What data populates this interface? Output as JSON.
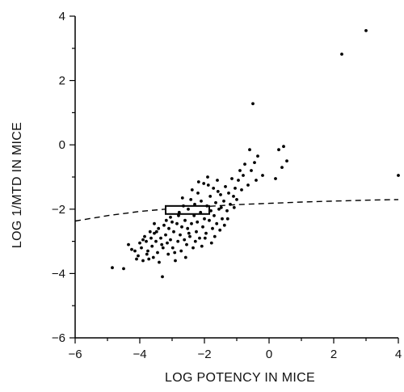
{
  "chart_data": {
    "type": "scatter",
    "xlabel": "LOG POTENCY IN MICE",
    "ylabel": "LOG 1/MTD IN MICE",
    "xlim": [
      -6,
      4
    ],
    "ylim": [
      -6,
      4
    ],
    "xticks": [
      -6,
      -4,
      -2,
      0,
      2,
      4
    ],
    "yticks": [
      -6,
      -4,
      -2,
      0,
      2,
      4
    ],
    "xtick_labels": [
      "−6",
      "−4",
      "−2",
      "0",
      "2",
      "4"
    ],
    "ytick_labels": [
      "−6",
      "−4",
      "−2",
      "0",
      "2",
      "4"
    ],
    "grid": false,
    "points": [
      [
        -4.85,
        -3.82
      ],
      [
        -4.5,
        -3.85
      ],
      [
        -4.35,
        -3.1
      ],
      [
        -4.25,
        -3.25
      ],
      [
        -4.15,
        -3.3
      ],
      [
        -4.05,
        -3.45
      ],
      [
        -4.0,
        -3.05
      ],
      [
        -3.95,
        -3.2
      ],
      [
        -3.9,
        -3.6
      ],
      [
        -3.85,
        -2.85
      ],
      [
        -3.8,
        -3.0
      ],
      [
        -3.75,
        -3.3
      ],
      [
        -3.72,
        -3.55
      ],
      [
        -3.65,
        -2.9
      ],
      [
        -3.62,
        -3.15
      ],
      [
        -3.58,
        -3.5
      ],
      [
        -3.55,
        -2.75
      ],
      [
        -3.5,
        -3.0
      ],
      [
        -3.45,
        -3.35
      ],
      [
        -3.42,
        -2.6
      ],
      [
        -3.4,
        -3.65
      ],
      [
        -3.35,
        -2.9
      ],
      [
        -3.3,
        -4.1
      ],
      [
        -3.28,
        -3.2
      ],
      [
        -3.25,
        -2.5
      ],
      [
        -3.2,
        -2.8
      ],
      [
        -3.15,
        -3.05
      ],
      [
        -3.12,
        -3.4
      ],
      [
        -3.1,
        -2.6
      ],
      [
        -3.05,
        -2.95
      ],
      [
        -3.0,
        -2.4
      ],
      [
        -2.98,
        -3.2
      ],
      [
        -2.95,
        -2.7
      ],
      [
        -2.9,
        -3.6
      ],
      [
        -2.85,
        -2.45
      ],
      [
        -2.82,
        -3.0
      ],
      [
        -2.8,
        -2.2
      ],
      [
        -2.75,
        -2.8
      ],
      [
        -2.72,
        -3.3
      ],
      [
        -2.7,
        -2.55
      ],
      [
        -2.65,
        -1.9
      ],
      [
        -2.62,
        -2.95
      ],
      [
        -2.6,
        -2.35
      ],
      [
        -2.55,
        -3.1
      ],
      [
        -2.52,
        -2.6
      ],
      [
        -2.5,
        -2.0
      ],
      [
        -2.45,
        -2.85
      ],
      [
        -2.42,
        -1.7
      ],
      [
        -2.4,
        -2.45
      ],
      [
        -2.35,
        -3.2
      ],
      [
        -2.32,
        -2.2
      ],
      [
        -2.3,
        -1.85
      ],
      [
        -2.25,
        -2.7
      ],
      [
        -2.22,
        -2.4
      ],
      [
        -2.2,
        -1.5
      ],
      [
        -2.15,
        -2.9
      ],
      [
        -2.12,
        -2.1
      ],
      [
        -2.1,
        -1.75
      ],
      [
        -2.05,
        -2.55
      ],
      [
        -2.02,
        -1.2
      ],
      [
        -2.0,
        -2.3
      ],
      [
        -1.95,
        -2.75
      ],
      [
        -1.92,
        -1.9
      ],
      [
        -1.9,
        -1.0
      ],
      [
        -1.85,
        -2.35
      ],
      [
        -1.82,
        -1.6
      ],
      [
        -1.8,
        -2.05
      ],
      [
        -1.75,
        -2.6
      ],
      [
        -1.72,
        -1.35
      ],
      [
        -1.7,
        -2.2
      ],
      [
        -1.65,
        -1.8
      ],
      [
        -1.62,
        -2.45
      ],
      [
        -1.6,
        -1.1
      ],
      [
        -1.55,
        -2.0
      ],
      [
        -1.5,
        -1.55
      ],
      [
        -1.45,
        -2.3
      ],
      [
        -1.4,
        -1.75
      ],
      [
        -1.35,
        -1.3
      ],
      [
        -1.3,
        -2.05
      ],
      [
        -1.25,
        -1.5
      ],
      [
        -1.2,
        -1.85
      ],
      [
        -1.15,
        -1.05
      ],
      [
        -1.1,
        -1.6
      ],
      [
        -1.05,
        -1.35
      ],
      [
        -1.0,
        -1.7
      ],
      [
        -0.95,
        -1.1
      ],
      [
        -0.9,
        -0.8
      ],
      [
        -0.85,
        -1.4
      ],
      [
        -0.8,
        -0.95
      ],
      [
        -0.75,
        -0.6
      ],
      [
        -0.65,
        -1.25
      ],
      [
        -0.6,
        -0.15
      ],
      [
        -0.55,
        -0.8
      ],
      [
        -0.45,
        -0.55
      ],
      [
        -0.4,
        -1.1
      ],
      [
        -0.35,
        -0.35
      ],
      [
        -0.2,
        -0.95
      ],
      [
        0.2,
        -1.05
      ],
      [
        0.3,
        -0.15
      ],
      [
        0.4,
        -0.7
      ],
      [
        0.45,
        -0.05
      ],
      [
        0.55,
        -0.5
      ],
      [
        -3.9,
        -2.95
      ],
      [
        -3.55,
        -2.45
      ],
      [
        -3.05,
        -2.25
      ],
      [
        -2.78,
        -2.1
      ],
      [
        -2.48,
        -2.75
      ],
      [
        -2.28,
        -3.0
      ],
      [
        -1.98,
        -2.9
      ],
      [
        -1.68,
        -2.85
      ],
      [
        -1.58,
        -1.45
      ],
      [
        -1.48,
        -1.95
      ],
      [
        -1.38,
        -2.5
      ],
      [
        -2.68,
        -1.65
      ],
      [
        -2.38,
        -1.4
      ],
      [
        -2.18,
        -1.15
      ],
      [
        -1.88,
        -1.25
      ],
      [
        -3.18,
        -2.35
      ],
      [
        -3.48,
        -2.7
      ],
      [
        -3.68,
        -2.7
      ],
      [
        -4.1,
        -3.55
      ],
      [
        -3.78,
        -3.4
      ],
      [
        -3.32,
        -3.1
      ],
      [
        -2.92,
        -3.35
      ],
      [
        -2.58,
        -3.5
      ],
      [
        -2.08,
        -3.15
      ],
      [
        -1.78,
        -3.05
      ],
      [
        -1.52,
        -2.65
      ],
      [
        -1.28,
        -2.3
      ],
      [
        -1.08,
        -1.95
      ],
      [
        2.25,
        2.82
      ],
      [
        3.0,
        3.55
      ],
      [
        -0.5,
        1.28
      ],
      [
        4.0,
        -0.95
      ]
    ],
    "dashed_curve": [
      [
        -6.0,
        -2.37
      ],
      [
        -5.0,
        -2.2
      ],
      [
        -4.0,
        -2.07
      ],
      [
        -3.0,
        -1.98
      ],
      [
        -2.0,
        -1.92
      ],
      [
        -1.0,
        -1.86
      ],
      [
        0.0,
        -1.82
      ],
      [
        1.0,
        -1.78
      ],
      [
        2.0,
        -1.75
      ],
      [
        3.0,
        -1.72
      ],
      [
        4.0,
        -1.7
      ]
    ],
    "box": {
      "x_range": [
        -3.2,
        -1.85
      ],
      "y_range": [
        -2.15,
        -1.9
      ]
    }
  }
}
